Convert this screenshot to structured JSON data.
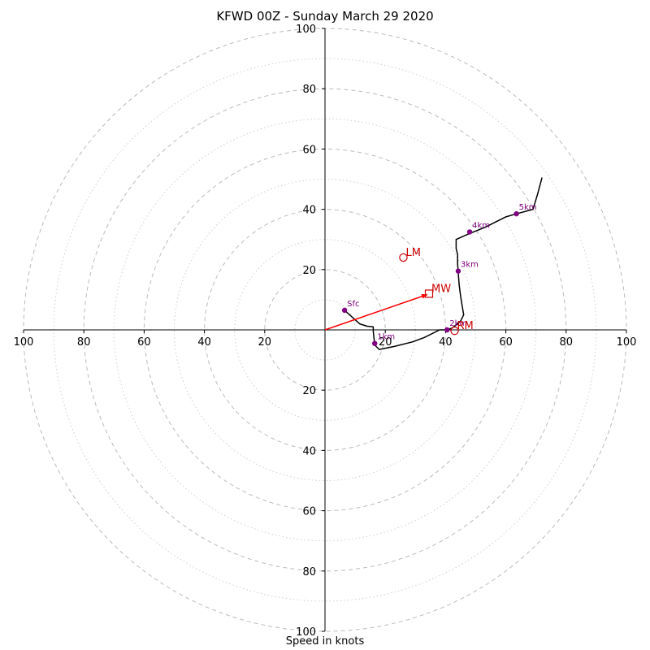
{
  "chart_data": {
    "type": "hodograph",
    "title": "KFWD 00Z - Sunday March 29 2020",
    "xlabel": "Speed in knots",
    "range": [
      -100,
      100
    ],
    "rings_major": [
      20,
      40,
      60,
      80,
      100
    ],
    "rings_minor": [
      10,
      30,
      50,
      70,
      90
    ],
    "tick_labels": [
      "100",
      "80",
      "60",
      "40",
      "20",
      "20",
      "40",
      "60",
      "80",
      "100"
    ],
    "tick_values": [
      -100,
      -80,
      -60,
      -40,
      -20,
      20,
      40,
      60,
      80,
      100
    ],
    "y_tick_labels_top": [
      "100",
      "80",
      "60",
      "40",
      "20"
    ],
    "y_tick_values_top": [
      100,
      80,
      60,
      40,
      20
    ],
    "y_tick_labels_bottom": [
      "20",
      "40",
      "60",
      "80",
      "100"
    ],
    "y_tick_values_bottom": [
      -20,
      -40,
      -60,
      -80,
      -100
    ],
    "hodograph_line": [
      [
        6.5,
        6.5
      ],
      [
        11.5,
        2
      ],
      [
        14,
        1.2
      ],
      [
        16,
        1
      ],
      [
        16,
        -0.5
      ],
      [
        16.5,
        -5
      ],
      [
        18,
        -6.5
      ],
      [
        23,
        -5.5
      ],
      [
        29,
        -4
      ],
      [
        33,
        -2.5
      ],
      [
        38,
        0
      ],
      [
        40,
        0
      ],
      [
        42,
        0.5
      ],
      [
        44,
        2
      ],
      [
        45,
        3
      ],
      [
        46,
        5
      ],
      [
        45.5,
        8
      ],
      [
        45,
        11
      ],
      [
        44.5,
        15
      ],
      [
        44.2,
        19
      ],
      [
        44,
        22
      ],
      [
        44,
        25
      ],
      [
        43.5,
        27
      ],
      [
        43.5,
        30
      ],
      [
        48,
        32
      ],
      [
        53,
        34
      ],
      [
        57,
        36
      ],
      [
        60,
        37.5
      ],
      [
        63.5,
        38.5
      ],
      [
        69,
        40
      ],
      [
        70.5,
        45
      ],
      [
        72,
        50.5
      ]
    ],
    "height_markers": [
      {
        "label": "Sfc",
        "u": 6.5,
        "v": 6.5
      },
      {
        "label": "1km",
        "u": 16.5,
        "v": -4.5
      },
      {
        "label": "2km",
        "u": 40.5,
        "v": 0
      },
      {
        "label": "3km",
        "u": 44.2,
        "v": 19.5
      },
      {
        "label": "4km",
        "u": 48,
        "v": 32.5
      },
      {
        "label": "5km",
        "u": 63.5,
        "v": 38.5
      }
    ],
    "storm_motion": [
      {
        "label": "LM",
        "u": 26,
        "v": 24,
        "marker": "circle"
      },
      {
        "label": "RM",
        "u": 43,
        "v": -0.3,
        "marker": "circle"
      },
      {
        "label": "MW",
        "u": 34.5,
        "v": 12,
        "marker": "square"
      }
    ],
    "mean_wind_vector": {
      "u": 34.5,
      "v": 12
    },
    "colors": {
      "hodograph": "#000000",
      "markers": "#800080",
      "storm_motion": "#cc0000",
      "grid": "#bbbbbb",
      "vector": "#ff0000"
    }
  }
}
